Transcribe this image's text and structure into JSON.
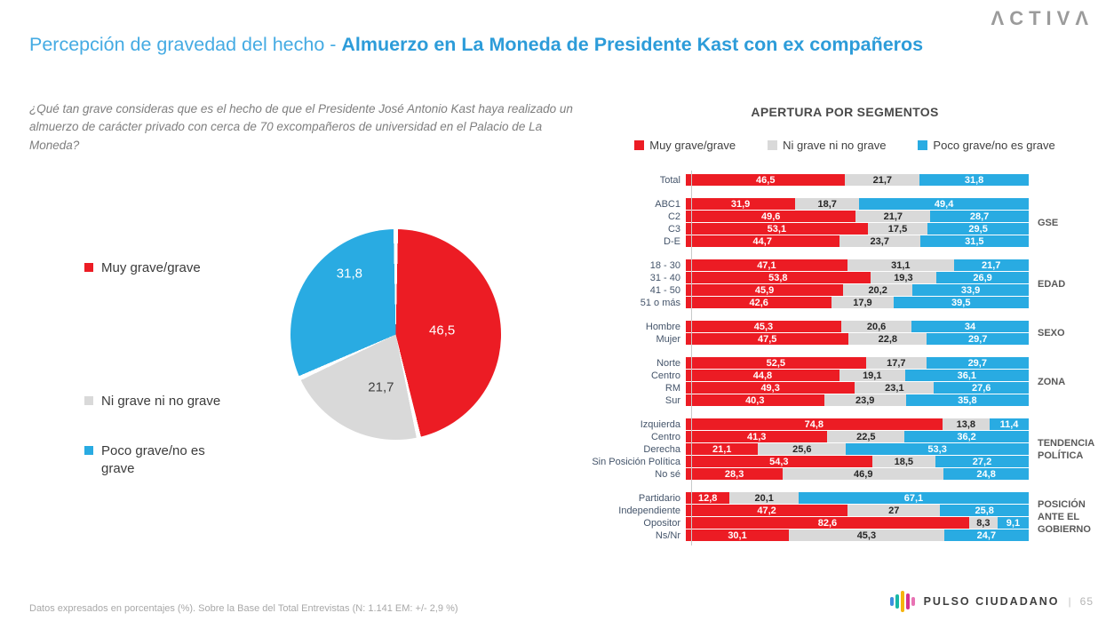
{
  "brand": {
    "logo_text": "ΛCTIVΛ",
    "footer_brand": "PULSO CIUDADANO",
    "separator": "|",
    "page_number": "65"
  },
  "header": {
    "title_regular": "Percepción de gravedad del hecho - ",
    "title_bold": " Almuerzo en La Moneda de Presidente Kast con ex compañeros",
    "question": "¿Qué tan grave consideras que es el hecho de que el Presidente José Antonio Kast haya realizado un almuerzo de carácter privado con cerca de 70 excompañeros de universidad en el Palacio de La Moneda?"
  },
  "footer": {
    "note": "Datos expresados en porcentajes (%). Sobre la Base del Total Entrevistas (N: 1.141  EM: +/- 2,9 %)"
  },
  "chart_data": [
    {
      "type": "pie",
      "labels": [
        "Muy grave/grave",
        "Ni grave ni no grave",
        "Poco grave/no es grave"
      ],
      "values": [
        46.5,
        21.7,
        31.8
      ],
      "colors": [
        "#ec1c24",
        "#d9d9d9",
        "#29abe2"
      ],
      "start_angle_deg": 0,
      "direction": "clockwise",
      "legend_position": "left"
    },
    {
      "type": "bar",
      "title": "APERTURA POR SEGMENTOS",
      "orientation": "horizontal",
      "stacked": true,
      "xlim": [
        0,
        100
      ],
      "legend": [
        "Muy grave/grave",
        "Ni grave ni no grave",
        "Poco grave/no es grave"
      ],
      "colors": [
        "#ec1c24",
        "#d9d9d9",
        "#29abe2"
      ],
      "groups": [
        {
          "name": "",
          "rows": [
            {
              "label": "Total",
              "values": [
                46.5,
                21.7,
                31.8
              ]
            }
          ]
        },
        {
          "name": "GSE",
          "rows": [
            {
              "label": "ABC1",
              "values": [
                31.9,
                18.7,
                49.4
              ]
            },
            {
              "label": "C2",
              "values": [
                49.6,
                21.7,
                28.7
              ]
            },
            {
              "label": "C3",
              "values": [
                53.1,
                17.5,
                29.5
              ]
            },
            {
              "label": "D-E",
              "values": [
                44.7,
                23.7,
                31.5
              ]
            }
          ]
        },
        {
          "name": "EDAD",
          "rows": [
            {
              "label": "18 - 30",
              "values": [
                47.1,
                31.1,
                21.7
              ]
            },
            {
              "label": "31 - 40",
              "values": [
                53.8,
                19.3,
                26.9
              ]
            },
            {
              "label": "41 - 50",
              "values": [
                45.9,
                20.2,
                33.9
              ]
            },
            {
              "label": "51 o más",
              "values": [
                42.6,
                17.9,
                39.5
              ]
            }
          ]
        },
        {
          "name": "SEXO",
          "rows": [
            {
              "label": "Hombre",
              "values": [
                45.3,
                20.6,
                34
              ]
            },
            {
              "label": "Mujer",
              "values": [
                47.5,
                22.8,
                29.7
              ]
            }
          ]
        },
        {
          "name": "ZONA",
          "rows": [
            {
              "label": "Norte",
              "values": [
                52.5,
                17.7,
                29.7
              ]
            },
            {
              "label": "Centro",
              "values": [
                44.8,
                19.1,
                36.1
              ]
            },
            {
              "label": "RM",
              "values": [
                49.3,
                23.1,
                27.6
              ]
            },
            {
              "label": "Sur",
              "values": [
                40.3,
                23.9,
                35.8
              ]
            }
          ]
        },
        {
          "name": "TENDENCIA POLÍTICA",
          "rows": [
            {
              "label": "Izquierda",
              "values": [
                74.8,
                13.8,
                11.4
              ]
            },
            {
              "label": "Centro",
              "values": [
                41.3,
                22.5,
                36.2
              ]
            },
            {
              "label": "Derecha",
              "values": [
                21.1,
                25.6,
                53.3
              ]
            },
            {
              "label": "Sin Posición Política",
              "values": [
                54.3,
                18.5,
                27.2
              ]
            },
            {
              "label": "No sé",
              "values": [
                28.3,
                46.9,
                24.8
              ]
            }
          ]
        },
        {
          "name": "POSICIÓN ANTE EL GOBIERNO",
          "rows": [
            {
              "label": "Partidario",
              "values": [
                12.8,
                20.1,
                67.1
              ]
            },
            {
              "label": "Independiente",
              "values": [
                47.2,
                27,
                25.8
              ]
            },
            {
              "label": "Opositor",
              "values": [
                82.6,
                8.3,
                9.1
              ]
            },
            {
              "label": "Ns/Nr",
              "values": [
                30.1,
                45.3,
                24.7
              ]
            }
          ]
        }
      ]
    }
  ]
}
